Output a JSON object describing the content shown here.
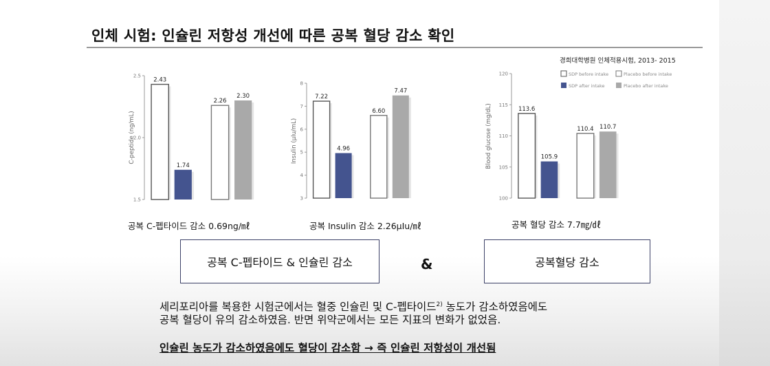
{
  "title": "인체 시험: 인슐린 저항성 개선에 따른 공복 혈당 감소 확인",
  "source": "경희대학병원 인체적용시험, 2013- 2015",
  "legend": {
    "sdp_before": "SDP before intake",
    "placebo_before": "Placebo before intake",
    "sdp_after": "SDP after intake",
    "placebo_after": "Placebo after intake"
  },
  "colors": {
    "before": "#ffffff",
    "sdp_after": "#44548f",
    "placebo_after": "#a9a9a9",
    "outline": "#555555"
  },
  "chart_data": [
    {
      "type": "bar",
      "ylabel": "C-peptide (ng/mL)",
      "ylim": [
        1.5,
        2.5
      ],
      "yticks": [
        "1.5",
        "2.0",
        "2.5"
      ],
      "series": [
        {
          "name": "SDP before intake",
          "value": 2.43,
          "label": "2.43"
        },
        {
          "name": "SDP after intake",
          "value": 1.74,
          "label": "1.74"
        },
        {
          "name": "Placebo before intake",
          "value": 2.26,
          "label": "2.26"
        },
        {
          "name": "Placebo after intake",
          "value": 2.3,
          "label": "2.30"
        }
      ]
    },
    {
      "type": "bar",
      "ylabel": "Insulin (μIu/mL)",
      "ylim": [
        3,
        8
      ],
      "yticks": [
        "3",
        "4",
        "5",
        "6",
        "7",
        "8"
      ],
      "series": [
        {
          "name": "SDP before intake",
          "value": 7.22,
          "label": "7.22"
        },
        {
          "name": "SDP after intake",
          "value": 4.96,
          "label": "4.96"
        },
        {
          "name": "Placebo before intake",
          "value": 6.6,
          "label": "6.60"
        },
        {
          "name": "Placebo after intake",
          "value": 7.47,
          "label": "7.47"
        }
      ]
    },
    {
      "type": "bar",
      "ylabel": "Blood glucose (mg/dL)",
      "ylim": [
        100,
        120
      ],
      "yticks": [
        "100",
        "105",
        "110",
        "115",
        "120"
      ],
      "series": [
        {
          "name": "SDP before intake",
          "value": 113.6,
          "label": "113.6"
        },
        {
          "name": "SDP after intake",
          "value": 105.9,
          "label": "105.9"
        },
        {
          "name": "Placebo before intake",
          "value": 110.4,
          "label": "110.4"
        },
        {
          "name": "Placebo after intake",
          "value": 110.7,
          "label": "110.7"
        }
      ]
    }
  ],
  "captions": [
    "공복 C-펩타이드 감소 0.69ng/㎖",
    "공복 Insulin 감소 2.26μIu/㎖",
    "공복 혈당 감소 7.7㎎/㎗"
  ],
  "boxes": {
    "left": "공복 C-펩타이드 & 인슐린 감소",
    "amp": "&",
    "right": "공복혈당 감소"
  },
  "paragraph": {
    "line1a": "세리포리아를 복용한 시험군에서는 혈중 인슐린 및 C-펩타이드",
    "sup": "2)",
    "line1b": " 농도가 감소하였음에도",
    "line2": "공복 혈당이 유의 감소하였음. 반면 위약군에서는 모든 지표의 변화가 없었음."
  },
  "conclusion": "인슐린 농도가 감소하였음에도 혈당이 감소함 → 즉 인슐린 저항성이 개선됨"
}
